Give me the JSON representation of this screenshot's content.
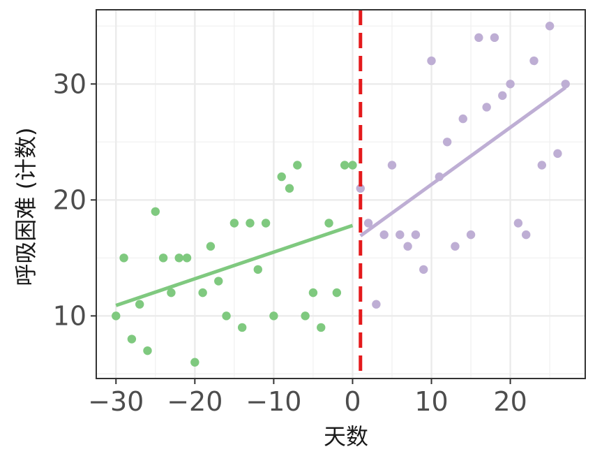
{
  "chart_data": {
    "type": "scatter",
    "xlabel": "天数",
    "ylabel": "呼吸困难 (计数)",
    "xlim": [
      -32.5,
      29.5
    ],
    "ylim": [
      4.6,
      36.4
    ],
    "x_ticks": [
      -30,
      -20,
      -10,
      0,
      10,
      20
    ],
    "x_tick_labels": [
      "−30",
      "−20",
      "−10",
      "0",
      "10",
      "20"
    ],
    "y_ticks": [
      10,
      20,
      30
    ],
    "y_tick_labels": [
      "10",
      "20",
      "30"
    ],
    "grid": true,
    "cutoff_x": 1,
    "series": [
      {
        "color": "#7fc97f",
        "x": [
          -30,
          -29,
          -28,
          -27,
          -26,
          -25,
          -24,
          -23,
          -22,
          -21,
          -20,
          -19,
          -18,
          -17,
          -16,
          -15,
          -14,
          -13,
          -12,
          -11,
          -10,
          -9,
          -8,
          -7,
          -6,
          -5,
          -4,
          -3,
          -2,
          -1,
          0
        ],
        "y": [
          10,
          15,
          8,
          11,
          7,
          19,
          15,
          12,
          15,
          15,
          6,
          12,
          16,
          13,
          10,
          18,
          9,
          18,
          14,
          18,
          10,
          22,
          21,
          23,
          10,
          12,
          9,
          18,
          12,
          23,
          23
        ],
        "fit": {
          "x": [
            -30,
            0
          ],
          "y": [
            10.9,
            17.8
          ]
        }
      },
      {
        "color": "#beaed4",
        "x": [
          1,
          2,
          3,
          4,
          5,
          6,
          7,
          8,
          9,
          10,
          11,
          12,
          13,
          14,
          15,
          16,
          17,
          18,
          19,
          20,
          21,
          22,
          23,
          24,
          25,
          26,
          27
        ],
        "y": [
          21,
          18,
          11,
          17,
          23,
          17,
          16,
          17,
          14,
          32,
          22,
          25,
          16,
          27,
          17,
          34,
          28,
          34,
          29,
          30,
          18,
          17,
          32,
          23,
          35,
          24,
          30
        ],
        "fit": {
          "x": [
            1,
            27
          ],
          "y": [
            16.9,
            29.7
          ]
        }
      }
    ],
    "vline_color": "#e41a1c"
  }
}
